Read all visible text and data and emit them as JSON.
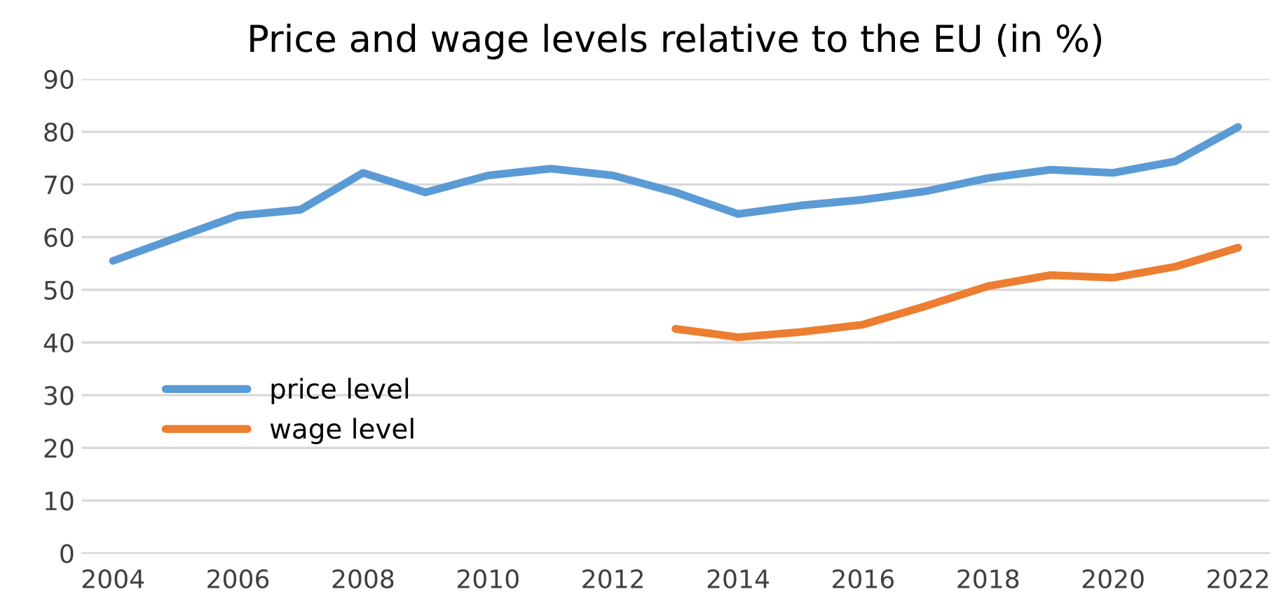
{
  "chart_data": {
    "type": "line",
    "title": "Price and wage levels relative to the EU (in %)",
    "x": [
      2004,
      2005,
      2006,
      2007,
      2008,
      2009,
      2010,
      2011,
      2012,
      2013,
      2014,
      2015,
      2016,
      2017,
      2018,
      2019,
      2020,
      2021,
      2022
    ],
    "series": [
      {
        "name": "price level",
        "color": "#5b9bd5",
        "values": [
          55.5,
          59.8,
          64.1,
          65.2,
          72.2,
          68.5,
          71.7,
          73,
          71.7,
          68.5,
          64.4,
          66,
          67.1,
          68.7,
          71.2,
          72.8,
          72.2,
          74.4,
          80.9
        ]
      },
      {
        "name": "wage level",
        "color": "#ed7d31",
        "values": [
          null,
          null,
          null,
          null,
          null,
          null,
          null,
          null,
          null,
          42.6,
          41,
          42,
          43.4,
          46.9,
          50.7,
          52.8,
          52.3,
          54.4,
          58
        ]
      }
    ],
    "xlim": [
      2003.5,
      2022.5
    ],
    "xticks": [
      2004,
      2006,
      2008,
      2010,
      2012,
      2014,
      2016,
      2018,
      2020,
      2022
    ],
    "ylim": [
      0,
      90
    ],
    "yticks": [
      0,
      10,
      20,
      30,
      40,
      50,
      60,
      70,
      80,
      90
    ],
    "grid": "y",
    "legend": "left",
    "marker": "none",
    "line_style": "solid"
  }
}
